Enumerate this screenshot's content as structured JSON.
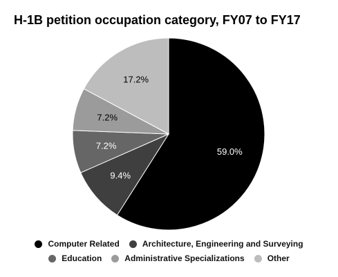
{
  "chart_data": {
    "type": "pie",
    "title": "H-1B petition occupation category, FY07 to FY17",
    "categories": [
      "Computer Related",
      "Architecture, Engineering and Surveying",
      "Education",
      "Administrative Specializations",
      "Other"
    ],
    "values": [
      59.0,
      9.4,
      7.2,
      7.2,
      17.2
    ],
    "value_labels": [
      "59.0%",
      "9.4%",
      "7.2%",
      "7.2%",
      "17.2%"
    ],
    "colors": [
      "#000000",
      "#3f3f3f",
      "#666666",
      "#9b9b9b",
      "#bdbdbd"
    ],
    "label_colors": [
      "#ffffff",
      "#ffffff",
      "#ffffff",
      "#000000",
      "#000000"
    ],
    "start_angle_deg": 0,
    "direction": "clockwise",
    "legend_position": "bottom"
  }
}
